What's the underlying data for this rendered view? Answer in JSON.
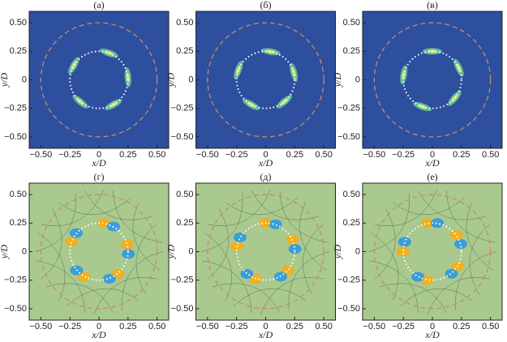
{
  "chart_data": [
    {
      "type": "field",
      "title": "(а)",
      "xlabel": "x/D",
      "ylabel": "y/D",
      "color": "#2d4f9e",
      "xlim": [
        -0.6,
        0.6
      ],
      "ylim": [
        -0.6,
        0.6
      ],
      "xticks": [
        {
          "value": -0.5,
          "label": "−0.50"
        },
        {
          "value": -0.25,
          "label": "−0.25"
        },
        0,
        0.25,
        {
          "value": 0.5,
          "label": "0.50"
        }
      ],
      "yticks": [
        {
          "value": -0.5,
          "label": "−0.50"
        },
        {
          "value": -0.25,
          "label": "−0.25"
        },
        0,
        0.25,
        {
          "value": 0.5,
          "label": "0.50"
        }
      ]
    },
    {
      "type": "field",
      "title": "(б)",
      "xlabel": "x/D",
      "ylabel": "y/D",
      "color": "#2d4f9e",
      "xlim": [
        -0.6,
        0.6
      ],
      "ylim": [
        -0.6,
        0.6
      ],
      "xticks": [
        {
          "value": -0.5,
          "label": "−0.50"
        },
        {
          "value": -0.25,
          "label": "−0.25"
        },
        0,
        0.25,
        {
          "value": 0.5,
          "label": "0.50"
        }
      ],
      "yticks": [
        {
          "value": -0.5,
          "label": "−0.50"
        },
        {
          "value": -0.25,
          "label": "−0.25"
        },
        0,
        0.25,
        {
          "value": 0.5,
          "label": "0.50"
        }
      ]
    },
    {
      "type": "field",
      "title": "(в)",
      "xlabel": "x/D",
      "ylabel": "y/D",
      "color": "#2d4f9e",
      "xlim": [
        -0.6,
        0.6
      ],
      "ylim": [
        -0.6,
        0.6
      ],
      "xticks": [
        {
          "value": -0.5,
          "label": "−0.50"
        },
        {
          "value": -0.25,
          "label": "−0.25"
        },
        0,
        0.25,
        {
          "value": 0.5,
          "label": "0.50"
        }
      ],
      "yticks": [
        {
          "value": -0.5,
          "label": "−0.50"
        },
        {
          "value": -0.25,
          "label": "−0.25"
        },
        0,
        0.25,
        {
          "value": 0.5,
          "label": "0.50"
        }
      ]
    },
    {
      "type": "field",
      "title": "(г)",
      "xlabel": "x/D",
      "ylabel": "y/D",
      "color": "#a9c98e",
      "xlim": [
        -0.6,
        0.6
      ],
      "ylim": [
        -0.6,
        0.6
      ],
      "xticks": [
        {
          "value": -0.5,
          "label": "−0.50"
        },
        {
          "value": -0.25,
          "label": "−0.25"
        },
        0,
        0.25,
        {
          "value": 0.5,
          "label": "0.50"
        }
      ],
      "yticks": [
        {
          "value": -0.5,
          "label": "−0.50"
        },
        {
          "value": -0.25,
          "label": "−0.25"
        },
        0,
        0.25,
        {
          "value": 0.5,
          "label": "0.50"
        }
      ]
    },
    {
      "type": "field",
      "title": "(д)",
      "xlabel": "x/D",
      "ylabel": "y/D",
      "color": "#a9c98e",
      "xlim": [
        -0.6,
        0.6
      ],
      "ylim": [
        -0.6,
        0.6
      ],
      "xticks": [
        {
          "value": -0.5,
          "label": "−0.50"
        },
        {
          "value": -0.25,
          "label": "−0.25"
        },
        0,
        0.25,
        {
          "value": 0.5,
          "label": "0.50"
        }
      ],
      "yticks": [
        {
          "value": -0.5,
          "label": "−0.50"
        },
        {
          "value": -0.25,
          "label": "−0.25"
        },
        0,
        0.25,
        {
          "value": 0.5,
          "label": "0.50"
        }
      ]
    },
    {
      "type": "field",
      "title": "(е)",
      "xlabel": "x/D",
      "ylabel": "y/D",
      "color": "#a9c98e",
      "xlim": [
        -0.6,
        0.6
      ],
      "ylim": [
        -0.6,
        0.6
      ],
      "xticks": [
        {
          "value": -0.5,
          "label": "−0.50"
        },
        {
          "value": -0.25,
          "label": "−0.25"
        },
        0,
        0.25,
        {
          "value": 0.5,
          "label": "0.50"
        }
      ],
      "yticks": [
        {
          "value": -0.5,
          "label": "−0.50"
        },
        {
          "value": -0.25,
          "label": "−0.25"
        },
        0,
        0.25,
        {
          "value": 0.5,
          "label": "0.50"
        }
      ]
    }
  ]
}
